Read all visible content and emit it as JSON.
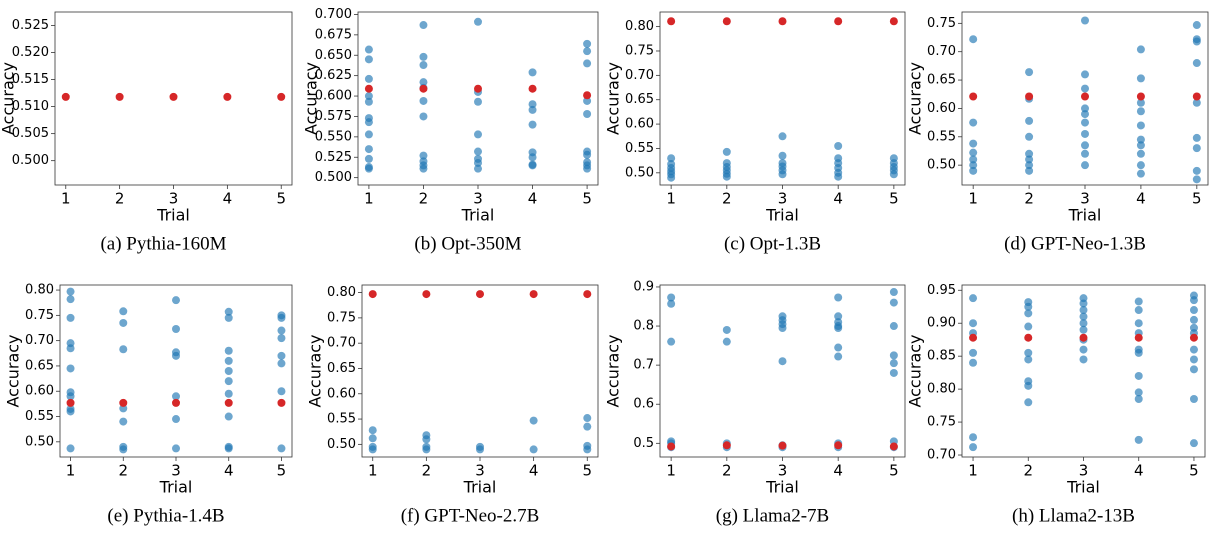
{
  "chart_data": [
    {
      "type": "scatter",
      "caption": "(a) Pythia-160M",
      "xlabel": "Trial",
      "ylabel": "Accuracy",
      "xlim": [
        0.8,
        5.2
      ],
      "xticks": [
        1,
        2,
        3,
        4,
        5
      ],
      "ylim": [
        0.4955,
        0.5275
      ],
      "yticks": [
        {
          "value": 0.5,
          "label": "0.500"
        },
        0.505,
        {
          "value": 0.51,
          "label": "0.510"
        },
        0.515,
        {
          "value": 0.52,
          "label": "0.520"
        },
        0.525
      ],
      "series": [
        {
          "color": "#d62728",
          "x": [
            1,
            2,
            3,
            4,
            5
          ],
          "values": [
            0.5118,
            0.5118,
            0.5118,
            0.5118,
            0.5118
          ]
        }
      ]
    },
    {
      "type": "scatter",
      "caption": "(b) Opt-350M",
      "xlabel": "Trial",
      "ylabel": "Accuracy",
      "xlim": [
        0.8,
        5.2
      ],
      "xticks": [
        1,
        2,
        3,
        4,
        5
      ],
      "ylim": [
        0.491,
        0.703
      ],
      "yticks": [
        {
          "value": 0.5,
          "label": "0.500"
        },
        0.525,
        {
          "value": 0.55,
          "label": "0.550"
        },
        0.575,
        {
          "value": 0.6,
          "label": "0.600"
        },
        0.625,
        {
          "value": 0.65,
          "label": "0.650"
        },
        0.675,
        {
          "value": 0.7,
          "label": "0.700"
        }
      ],
      "series": [
        {
          "color": "#1f77b4",
          "x": [
            1,
            1,
            1,
            1,
            1,
            1,
            1,
            1,
            1,
            1,
            1,
            1,
            2,
            2,
            2,
            2,
            2,
            2,
            2,
            2,
            2,
            2,
            2,
            3,
            3,
            3,
            3,
            3,
            3,
            3,
            3,
            4,
            4,
            4,
            4,
            4,
            4,
            4,
            4,
            5,
            5,
            5,
            5,
            5,
            5,
            5,
            5,
            5,
            5
          ],
          "values": [
            0.657,
            0.645,
            0.621,
            0.6,
            0.593,
            0.573,
            0.568,
            0.553,
            0.535,
            0.523,
            0.513,
            0.511,
            0.687,
            0.648,
            0.638,
            0.617,
            0.61,
            0.594,
            0.575,
            0.527,
            0.52,
            0.515,
            0.511,
            0.691,
            0.605,
            0.593,
            0.553,
            0.532,
            0.523,
            0.518,
            0.511,
            0.629,
            0.59,
            0.583,
            0.565,
            0.531,
            0.525,
            0.516,
            0.515,
            0.664,
            0.655,
            0.64,
            0.594,
            0.578,
            0.532,
            0.528,
            0.519,
            0.515,
            0.511
          ]
        },
        {
          "color": "#d62728",
          "x": [
            1,
            2,
            3,
            4,
            5
          ],
          "values": [
            0.609,
            0.609,
            0.609,
            0.609,
            0.601
          ]
        }
      ]
    },
    {
      "type": "scatter",
      "caption": "(c) Opt-1.3B",
      "xlabel": "Trial",
      "ylabel": "Accuracy",
      "xlim": [
        0.8,
        5.2
      ],
      "xticks": [
        1,
        2,
        3,
        4,
        5
      ],
      "ylim": [
        0.475,
        0.83
      ],
      "yticks": [
        {
          "value": 0.5,
          "label": "0.50"
        },
        0.55,
        {
          "value": 0.6,
          "label": "0.60"
        },
        0.65,
        {
          "value": 0.7,
          "label": "0.70"
        },
        0.75,
        {
          "value": 0.8,
          "label": "0.80"
        }
      ],
      "series": [
        {
          "color": "#1f77b4",
          "x": [
            1,
            1,
            1,
            1,
            1,
            1,
            2,
            2,
            2,
            2,
            2,
            2,
            3,
            3,
            3,
            3,
            3,
            3,
            4,
            4,
            4,
            4,
            4,
            4,
            5,
            5,
            5,
            5,
            5
          ],
          "values": [
            0.53,
            0.518,
            0.51,
            0.503,
            0.497,
            0.49,
            0.543,
            0.52,
            0.512,
            0.505,
            0.498,
            0.492,
            0.575,
            0.535,
            0.52,
            0.513,
            0.505,
            0.497,
            0.555,
            0.53,
            0.52,
            0.51,
            0.5,
            0.492,
            0.53,
            0.52,
            0.512,
            0.505,
            0.497
          ]
        },
        {
          "color": "#d62728",
          "x": [
            1,
            2,
            3,
            4,
            5
          ],
          "values": [
            0.811,
            0.811,
            0.811,
            0.811,
            0.811
          ]
        }
      ]
    },
    {
      "type": "scatter",
      "caption": "(d) GPT-Neo-1.3B",
      "xlabel": "Trial",
      "ylabel": "Accuracy",
      "xlim": [
        0.8,
        5.2
      ],
      "xticks": [
        1,
        2,
        3,
        4,
        5
      ],
      "ylim": [
        0.465,
        0.77
      ],
      "yticks": [
        {
          "value": 0.5,
          "label": "0.50"
        },
        0.55,
        {
          "value": 0.6,
          "label": "0.60"
        },
        0.65,
        {
          "value": 0.7,
          "label": "0.70"
        },
        0.75
      ],
      "series": [
        {
          "color": "#1f77b4",
          "x": [
            1,
            1,
            1,
            1,
            1,
            1,
            1,
            2,
            2,
            2,
            2,
            2,
            2,
            2,
            2,
            3,
            3,
            3,
            3,
            3,
            3,
            3,
            3,
            3,
            3,
            4,
            4,
            4,
            4,
            4,
            4,
            4,
            4,
            4,
            4,
            5,
            5,
            5,
            5,
            5,
            5,
            5,
            5,
            5
          ],
          "values": [
            0.722,
            0.575,
            0.538,
            0.522,
            0.51,
            0.5,
            0.49,
            0.664,
            0.617,
            0.578,
            0.55,
            0.52,
            0.51,
            0.5,
            0.49,
            0.755,
            0.66,
            0.635,
            0.6,
            0.59,
            0.575,
            0.555,
            0.535,
            0.52,
            0.5,
            0.704,
            0.653,
            0.61,
            0.595,
            0.57,
            0.545,
            0.535,
            0.52,
            0.5,
            0.485,
            0.747,
            0.722,
            0.718,
            0.68,
            0.61,
            0.548,
            0.53,
            0.49,
            0.475
          ]
        },
        {
          "color": "#d62728",
          "x": [
            1,
            2,
            3,
            4,
            5
          ],
          "values": [
            0.621,
            0.621,
            0.621,
            0.621,
            0.621
          ]
        }
      ]
    },
    {
      "type": "scatter",
      "caption": "(e) Pythia-1.4B",
      "xlabel": "Trial",
      "ylabel": "Accuracy",
      "xlim": [
        0.8,
        5.2
      ],
      "xticks": [
        1,
        2,
        3,
        4,
        5
      ],
      "ylim": [
        0.47,
        0.81
      ],
      "yticks": [
        {
          "value": 0.5,
          "label": "0.50"
        },
        0.55,
        {
          "value": 0.6,
          "label": "0.60"
        },
        0.65,
        {
          "value": 0.7,
          "label": "0.70"
        },
        0.75,
        {
          "value": 0.8,
          "label": "0.80"
        }
      ],
      "series": [
        {
          "color": "#1f77b4",
          "x": [
            1,
            1,
            1,
            1,
            1,
            1,
            1,
            1,
            1,
            1,
            1,
            2,
            2,
            2,
            2,
            2,
            2,
            2,
            3,
            3,
            3,
            3,
            3,
            3,
            3,
            4,
            4,
            4,
            4,
            4,
            4,
            4,
            4,
            4,
            4,
            5,
            5,
            5,
            5,
            5,
            5,
            5,
            5
          ],
          "values": [
            0.797,
            0.782,
            0.745,
            0.695,
            0.685,
            0.645,
            0.598,
            0.59,
            0.565,
            0.56,
            0.487,
            0.758,
            0.735,
            0.683,
            0.566,
            0.54,
            0.49,
            0.485,
            0.78,
            0.723,
            0.677,
            0.67,
            0.59,
            0.545,
            0.487,
            0.757,
            0.745,
            0.68,
            0.66,
            0.64,
            0.62,
            0.595,
            0.55,
            0.49,
            0.487,
            0.75,
            0.745,
            0.72,
            0.705,
            0.67,
            0.655,
            0.6,
            0.487
          ]
        },
        {
          "color": "#d62728",
          "x": [
            1,
            2,
            3,
            4,
            5
          ],
          "values": [
            0.577,
            0.577,
            0.577,
            0.577,
            0.577
          ]
        }
      ]
    },
    {
      "type": "scatter",
      "caption": "(f) GPT-Neo-2.7B",
      "xlabel": "Trial",
      "ylabel": "Accuracy",
      "xlim": [
        0.8,
        5.2
      ],
      "xticks": [
        1,
        2,
        3,
        4,
        5
      ],
      "ylim": [
        0.475,
        0.815
      ],
      "yticks": [
        {
          "value": 0.5,
          "label": "0.50"
        },
        0.55,
        {
          "value": 0.6,
          "label": "0.60"
        },
        0.65,
        {
          "value": 0.7,
          "label": "0.70"
        },
        0.75,
        {
          "value": 0.8,
          "label": "0.80"
        }
      ],
      "series": [
        {
          "color": "#1f77b4",
          "x": [
            1,
            1,
            1,
            1,
            2,
            2,
            2,
            2,
            3,
            3,
            4,
            4,
            5,
            5,
            5,
            5
          ],
          "values": [
            0.528,
            0.512,
            0.495,
            0.49,
            0.518,
            0.51,
            0.495,
            0.49,
            0.495,
            0.49,
            0.547,
            0.49,
            0.552,
            0.535,
            0.497,
            0.49
          ]
        },
        {
          "color": "#d62728",
          "x": [
            1,
            2,
            3,
            4,
            5
          ],
          "values": [
            0.797,
            0.797,
            0.797,
            0.797,
            0.797
          ]
        }
      ]
    },
    {
      "type": "scatter",
      "caption": "(g) Llama2-7B",
      "xlabel": "Trial",
      "ylabel": "Accuracy",
      "xlim": [
        0.8,
        5.2
      ],
      "xticks": [
        1,
        2,
        3,
        4,
        5
      ],
      "ylim": [
        0.465,
        0.905
      ],
      "yticks": [
        0.5,
        0.6,
        0.7,
        0.8,
        0.9
      ],
      "series": [
        {
          "color": "#1f77b4",
          "x": [
            1,
            1,
            1,
            1,
            1,
            1,
            2,
            2,
            2,
            2,
            3,
            3,
            3,
            3,
            3,
            3,
            3,
            4,
            4,
            4,
            4,
            4,
            4,
            4,
            4,
            4,
            5,
            5,
            5,
            5,
            5,
            5,
            5,
            5
          ],
          "values": [
            0.873,
            0.857,
            0.76,
            0.505,
            0.5,
            0.49,
            0.79,
            0.76,
            0.5,
            0.49,
            0.825,
            0.815,
            0.805,
            0.795,
            0.71,
            0.495,
            0.49,
            0.873,
            0.825,
            0.81,
            0.8,
            0.795,
            0.745,
            0.722,
            0.5,
            0.49,
            0.887,
            0.86,
            0.8,
            0.725,
            0.705,
            0.68,
            0.505,
            0.49
          ]
        },
        {
          "color": "#d62728",
          "x": [
            1,
            2,
            3,
            4,
            5
          ],
          "values": [
            0.492,
            0.495,
            0.494,
            0.495,
            0.492
          ]
        }
      ]
    },
    {
      "type": "scatter",
      "caption": "(h) Llama2-13B",
      "xlabel": "Trial",
      "ylabel": "Accuracy",
      "xlim": [
        0.8,
        5.2
      ],
      "xticks": [
        1,
        2,
        3,
        4,
        5
      ],
      "ylim": [
        0.697,
        0.958
      ],
      "yticks": [
        {
          "value": 0.7,
          "label": "0.70"
        },
        0.75,
        {
          "value": 0.8,
          "label": "0.80"
        },
        0.85,
        {
          "value": 0.9,
          "label": "0.90"
        },
        0.95
      ],
      "series": [
        {
          "color": "#1f77b4",
          "x": [
            1,
            1,
            1,
            1,
            1,
            1,
            1,
            2,
            2,
            2,
            2,
            2,
            2,
            2,
            2,
            2,
            3,
            3,
            3,
            3,
            3,
            3,
            3,
            3,
            3,
            4,
            4,
            4,
            4,
            4,
            4,
            4,
            4,
            4,
            4,
            5,
            5,
            5,
            5,
            5,
            5,
            5,
            5,
            5,
            5,
            5
          ],
          "values": [
            0.938,
            0.9,
            0.885,
            0.855,
            0.84,
            0.727,
            0.712,
            0.932,
            0.925,
            0.915,
            0.895,
            0.855,
            0.845,
            0.812,
            0.805,
            0.78,
            0.938,
            0.93,
            0.92,
            0.91,
            0.9,
            0.89,
            0.875,
            0.86,
            0.845,
            0.933,
            0.92,
            0.9,
            0.885,
            0.86,
            0.855,
            0.82,
            0.795,
            0.785,
            0.723,
            0.942,
            0.935,
            0.92,
            0.905,
            0.893,
            0.885,
            0.86,
            0.845,
            0.83,
            0.785,
            0.718
          ]
        },
        {
          "color": "#d62728",
          "x": [
            1,
            2,
            3,
            4,
            5
          ],
          "values": [
            0.878,
            0.878,
            0.878,
            0.878,
            0.878
          ]
        }
      ]
    }
  ]
}
